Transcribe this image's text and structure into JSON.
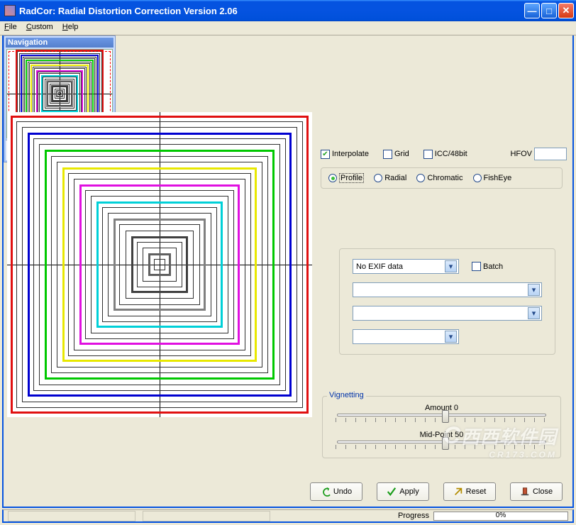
{
  "window": {
    "title": "RadCor: Radial Distortion Correction Version 2.06"
  },
  "menu": {
    "file": "File",
    "custom": "Custom",
    "help": "Help"
  },
  "nav": {
    "title": "Navigation"
  },
  "checks": {
    "interpolate": {
      "label": "Interpolate",
      "checked": true
    },
    "grid": {
      "label": "Grid",
      "checked": false
    },
    "icc": {
      "label": "ICC/48bit",
      "checked": false
    },
    "hfov_label": "HFOV",
    "hfov_value": ""
  },
  "modes": {
    "profile": "Profile",
    "radial": "Radial",
    "chromatic": "Chromatic",
    "fisheye": "FishEye",
    "selected": "profile"
  },
  "exif": {
    "combo1": "No EXIF data",
    "batch_label": "Batch",
    "batch_checked": false,
    "combo2": "",
    "combo3": "",
    "combo4": ""
  },
  "vignetting": {
    "legend": "Vignetting",
    "amount_label": "Amount 0",
    "amount_pos": 0.5,
    "midpoint_label": "Mid-Point 50",
    "midpoint_pos": 0.5
  },
  "buttons": {
    "undo": "Undo",
    "apply": "Apply",
    "reset": "Reset",
    "close": "Close"
  },
  "status": {
    "progress_label": "Progress",
    "progress_pct": "0%"
  },
  "watermark": {
    "main": "西西软件园",
    "sub": "CR173.COM"
  },
  "squares": {
    "count": 26,
    "colors": [
      "#e01010",
      "#0000d0",
      "#00c800",
      "#e8e800",
      "#e010e0",
      "#00d0d8",
      "#808080",
      "#404040",
      "#606060"
    ],
    "thin_color": "#303030"
  }
}
